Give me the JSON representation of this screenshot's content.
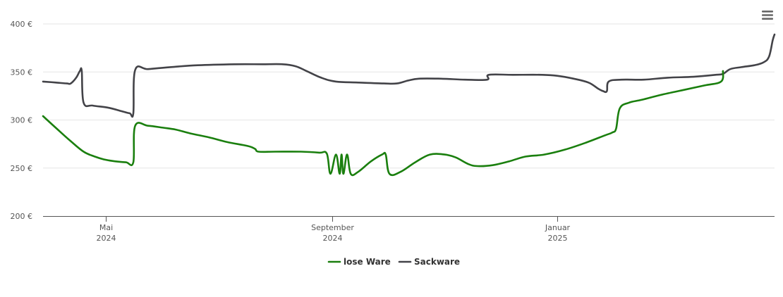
{
  "menu": {
    "icon": "hamburger-menu-icon"
  },
  "chart_data": {
    "type": "line",
    "title": "",
    "xlabel": "",
    "ylabel": "",
    "ylim": [
      200,
      400
    ],
    "xlim": [
      "2024-03-28",
      "2025-04-29"
    ],
    "y_ticks": [
      {
        "value": 400,
        "label": "400 €"
      },
      {
        "value": 350,
        "label": "350 €"
      },
      {
        "value": 300,
        "label": "300 €"
      },
      {
        "value": 250,
        "label": "250 €"
      },
      {
        "value": 200,
        "label": "200 €"
      }
    ],
    "x_ticks": [
      {
        "date": "2024-05-01",
        "month": "Mai",
        "year": "2024"
      },
      {
        "date": "2024-09-01",
        "month": "September",
        "year": "2024"
      },
      {
        "date": "2025-01-01",
        "month": "Januar",
        "year": "2025"
      }
    ],
    "grid": true,
    "legend_position": "bottom-center",
    "series": [
      {
        "name": "lose Ware",
        "color": "#1a7f0e",
        "points": [
          [
            "2024-03-28",
            304
          ],
          [
            "2024-04-05",
            290
          ],
          [
            "2024-04-12",
            278
          ],
          [
            "2024-04-19",
            267
          ],
          [
            "2024-04-25",
            262
          ],
          [
            "2024-04-30",
            259
          ],
          [
            "2024-05-06",
            257
          ],
          [
            "2024-05-12",
            256
          ],
          [
            "2024-05-16",
            256
          ],
          [
            "2024-05-17",
            294
          ],
          [
            "2024-05-24",
            294
          ],
          [
            "2024-06-01",
            292
          ],
          [
            "2024-06-08",
            290
          ],
          [
            "2024-06-16",
            286
          ],
          [
            "2024-06-26",
            282
          ],
          [
            "2024-07-06",
            277
          ],
          [
            "2024-07-17",
            273
          ],
          [
            "2024-07-21",
            270
          ],
          [
            "2024-07-23",
            267
          ],
          [
            "2024-08-01",
            267
          ],
          [
            "2024-08-15",
            267
          ],
          [
            "2024-08-25",
            266
          ],
          [
            "2024-08-29",
            265
          ],
          [
            "2024-08-31",
            244
          ],
          [
            "2024-09-03",
            264
          ],
          [
            "2024-09-05",
            244
          ],
          [
            "2024-09-06",
            264
          ],
          [
            "2024-09-07",
            244
          ],
          [
            "2024-09-09",
            264
          ],
          [
            "2024-09-11",
            244
          ],
          [
            "2024-09-15",
            246
          ],
          [
            "2024-09-22",
            257
          ],
          [
            "2024-09-28",
            264
          ],
          [
            "2024-09-30",
            264
          ],
          [
            "2024-10-02",
            244
          ],
          [
            "2024-10-08",
            246
          ],
          [
            "2024-10-16",
            256
          ],
          [
            "2024-10-24",
            264
          ],
          [
            "2024-11-01",
            264
          ],
          [
            "2024-11-07",
            261
          ],
          [
            "2024-11-14",
            254
          ],
          [
            "2024-11-19",
            252
          ],
          [
            "2024-11-27",
            253
          ],
          [
            "2024-12-06",
            257
          ],
          [
            "2024-12-15",
            262
          ],
          [
            "2024-12-25",
            264
          ],
          [
            "2025-01-05",
            269
          ],
          [
            "2025-01-16",
            276
          ],
          [
            "2025-01-27",
            284
          ],
          [
            "2025-01-31",
            287
          ],
          [
            "2025-02-02",
            291
          ],
          [
            "2025-02-04",
            312
          ],
          [
            "2025-02-09",
            318
          ],
          [
            "2025-02-16",
            321
          ],
          [
            "2025-02-26",
            326
          ],
          [
            "2025-03-10",
            331
          ],
          [
            "2025-03-22",
            336
          ],
          [
            "2025-03-31",
            340
          ],
          [
            "2025-04-01",
            351
          ]
        ]
      },
      {
        "name": "Sackware",
        "color": "#434348",
        "points": [
          [
            "2024-03-28",
            340
          ],
          [
            "2024-04-04",
            339
          ],
          [
            "2024-04-10",
            338
          ],
          [
            "2024-04-12",
            338
          ],
          [
            "2024-04-15",
            344
          ],
          [
            "2024-04-17",
            351
          ],
          [
            "2024-04-18",
            351
          ],
          [
            "2024-04-19",
            318
          ],
          [
            "2024-04-24",
            315
          ],
          [
            "2024-05-02",
            313
          ],
          [
            "2024-05-10",
            309
          ],
          [
            "2024-05-14",
            307
          ],
          [
            "2024-05-16",
            307
          ],
          [
            "2024-05-17",
            352
          ],
          [
            "2024-05-24",
            353
          ],
          [
            "2024-06-05",
            355
          ],
          [
            "2024-06-20",
            357
          ],
          [
            "2024-07-10",
            358
          ],
          [
            "2024-07-25",
            358
          ],
          [
            "2024-08-05",
            358
          ],
          [
            "2024-08-12",
            356
          ],
          [
            "2024-08-18",
            351
          ],
          [
            "2024-08-26",
            344
          ],
          [
            "2024-09-03",
            340
          ],
          [
            "2024-09-15",
            339
          ],
          [
            "2024-09-29",
            338
          ],
          [
            "2024-10-06",
            338
          ],
          [
            "2024-10-12",
            341
          ],
          [
            "2024-10-18",
            343
          ],
          [
            "2024-10-30",
            343
          ],
          [
            "2024-11-12",
            342
          ],
          [
            "2024-11-24",
            342
          ],
          [
            "2024-11-25",
            347
          ],
          [
            "2024-12-08",
            347
          ],
          [
            "2024-12-24",
            347
          ],
          [
            "2025-01-01",
            346
          ],
          [
            "2025-01-10",
            343
          ],
          [
            "2025-01-18",
            339
          ],
          [
            "2025-01-23",
            333
          ],
          [
            "2025-01-26",
            330
          ],
          [
            "2025-01-28",
            330
          ],
          [
            "2025-01-29",
            340
          ],
          [
            "2025-02-05",
            342
          ],
          [
            "2025-02-17",
            342
          ],
          [
            "2025-03-02",
            344
          ],
          [
            "2025-03-16",
            345
          ],
          [
            "2025-03-28",
            347
          ],
          [
            "2025-04-01",
            348
          ],
          [
            "2025-04-05",
            353
          ],
          [
            "2025-04-11",
            355
          ],
          [
            "2025-04-18",
            357
          ],
          [
            "2025-04-23",
            360
          ],
          [
            "2025-04-26",
            366
          ],
          [
            "2025-04-28",
            383
          ],
          [
            "2025-04-29",
            389
          ]
        ]
      }
    ]
  }
}
